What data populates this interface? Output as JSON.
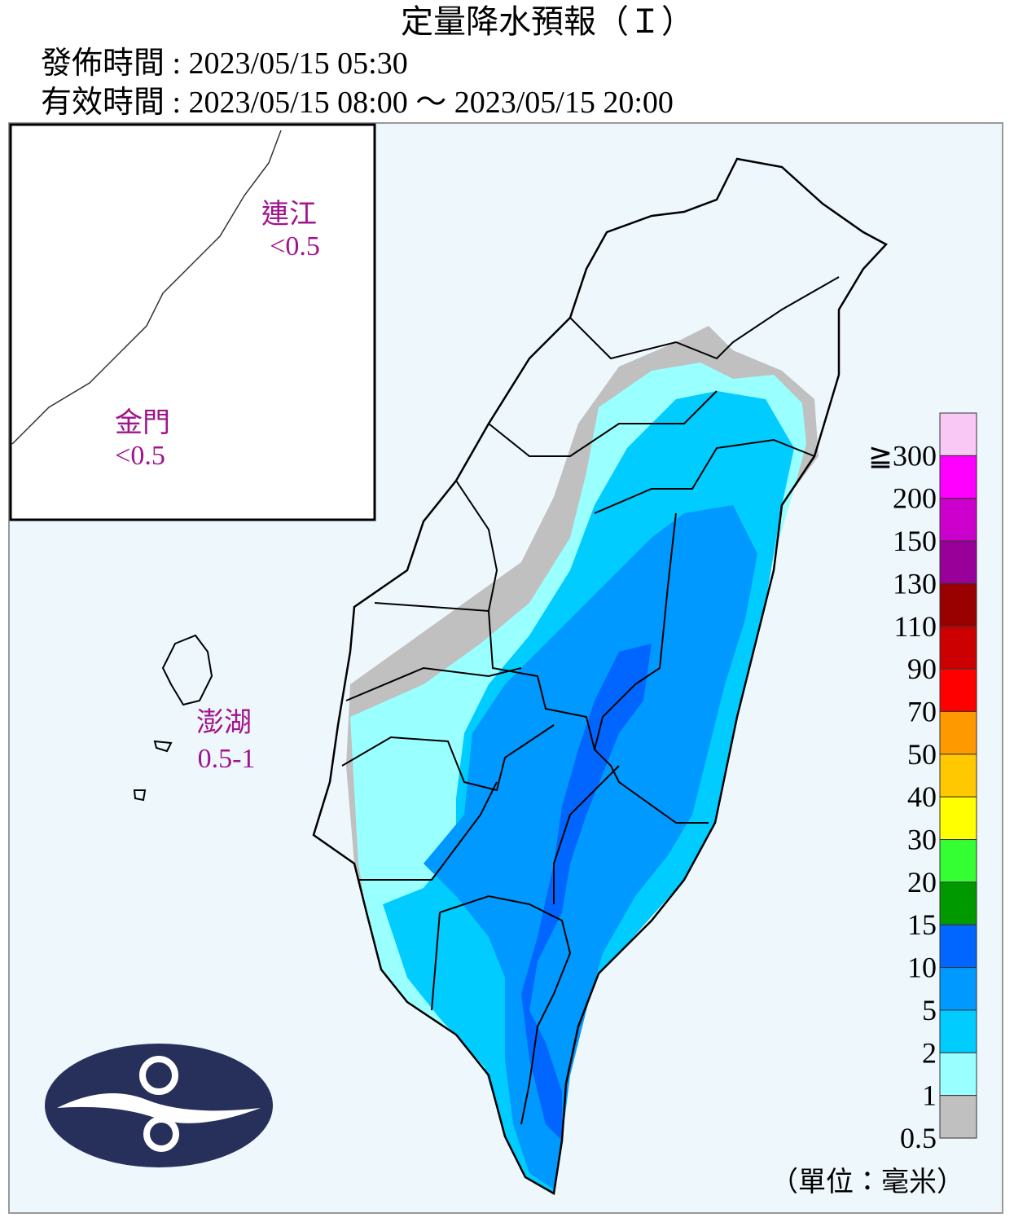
{
  "header": {
    "title": "定量降水預報（Ｉ）",
    "issued": "發佈時間 : 2023/05/15 05:30",
    "valid": "有效時間 : 2023/05/15 08:00 ～ 2023/05/15 20:00"
  },
  "regions": [
    {
      "name": "連江",
      "value": "<0.5"
    },
    {
      "name": "金門",
      "value": "<0.5"
    },
    {
      "name": "澎湖",
      "value": "0.5-1"
    }
  ],
  "legend": {
    "items": [
      {
        "label": "≧300",
        "color": "#fac8f5"
      },
      {
        "label": "200",
        "color": "#ff00ff"
      },
      {
        "label": "150",
        "color": "#cc00cc"
      },
      {
        "label": "130",
        "color": "#990099"
      },
      {
        "label": "110",
        "color": "#990000"
      },
      {
        "label": "90",
        "color": "#cc0000"
      },
      {
        "label": "70",
        "color": "#ff0000"
      },
      {
        "label": "50",
        "color": "#ff9900"
      },
      {
        "label": "40",
        "color": "#ffc800"
      },
      {
        "label": "30",
        "color": "#ffff00"
      },
      {
        "label": "20",
        "color": "#33ff33"
      },
      {
        "label": "15",
        "color": "#009900"
      },
      {
        "label": "10",
        "color": "#0066ff"
      },
      {
        "label": "5",
        "color": "#0099ff"
      },
      {
        "label": "2",
        "color": "#00ccff"
      },
      {
        "label": "1",
        "color": "#99ffff"
      },
      {
        "label": "0.5",
        "color": "#c0c0c0"
      }
    ],
    "unit": "（單位：毫米）"
  }
}
